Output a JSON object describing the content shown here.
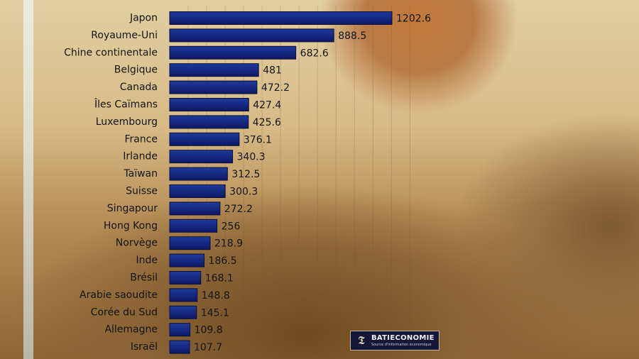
{
  "colors": {
    "bar_top": "#1e3a9c",
    "bar_bottom": "#0d1866",
    "bar_stroke": "#0a0f3a",
    "text": "#141414"
  },
  "logo": {
    "name": "BATIECONOMIE",
    "tagline": "Source d'information économique",
    "icon": "bank-monogram-icon"
  },
  "chart_data": {
    "type": "bar",
    "orientation": "horizontal",
    "categories": [
      "Japon",
      "Royaume-Uni",
      "Chine continentale",
      "Belgique",
      "Canada",
      "Îles Caïmans",
      "Luxembourg",
      "France",
      "Irlande",
      "Taïwan",
      "Suisse",
      "Singapour",
      "Hong Kong",
      "Norvège",
      "Inde",
      "Brésil",
      "Arabie saoudite",
      "Corée du Sud",
      "Allemagne",
      "Israël"
    ],
    "values": [
      1202.6,
      888.5,
      682.6,
      481,
      472.2,
      427.4,
      425.6,
      376.1,
      340.3,
      312.5,
      300.3,
      272.2,
      256,
      218.9,
      186.5,
      168.1,
      148.8,
      145.1,
      109.8,
      107.7
    ],
    "value_labels": [
      "1202.6",
      "888.5",
      "682.6",
      "481",
      "472.2",
      "427.4",
      "425.6",
      "376.1",
      "340.3",
      "312.5",
      "300.3",
      "272.2",
      "256",
      "218.9",
      "186.5",
      "168.1",
      "148.8",
      "145.1",
      "109.8",
      "107.7"
    ],
    "title": "",
    "xlabel": "",
    "ylabel": "",
    "xlim": [
      0,
      1300
    ],
    "grid": true,
    "legend": "none"
  }
}
